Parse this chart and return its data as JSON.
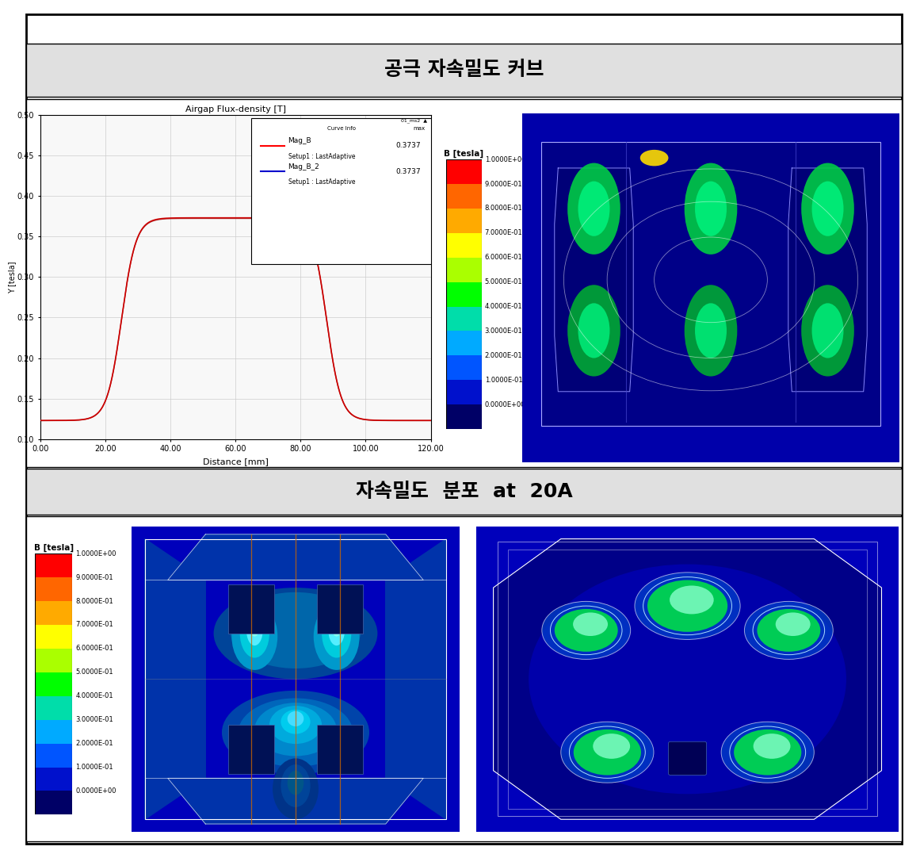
{
  "title1": "공극 자속밀도 커브",
  "title2": "자속밀도  분포  at  20A",
  "bg_outer": "#ffffff",
  "bg_header": "#e0e0e0",
  "border_color": "#000000",
  "curve_color": "#cc0000",
  "curve_title": "Airgap Flux-density [T]",
  "x_label": "Distance [mm]",
  "y_label": "Y [tesla]",
  "x_ticks": [
    0.0,
    20.0,
    40.0,
    60.0,
    80.0,
    100.0,
    120.0
  ],
  "y_ticks": [
    0.1,
    0.15,
    0.2,
    0.25,
    0.3,
    0.35,
    0.4,
    0.45,
    0.5
  ],
  "colorbar_title": "B [tesla]",
  "colorbar_labels": [
    "1.0000E+00",
    "9.0000E-01",
    "8.0000E-01",
    "7.0000E-01",
    "6.0000E-01",
    "5.0000E-01",
    "4.0000E-01",
    "3.0000E-01",
    "2.0000E-01",
    "1.0000E-01",
    "0.0000E+00"
  ],
  "colorbar_colors": [
    "#ff0000",
    "#ff6600",
    "#ffaa00",
    "#ffff00",
    "#aaff00",
    "#00ff00",
    "#00ddaa",
    "#00aaff",
    "#0055ff",
    "#0011cc",
    "#000066"
  ],
  "fea_bg": "#0000aa",
  "font_title_size": 18,
  "font_label_size": 9
}
